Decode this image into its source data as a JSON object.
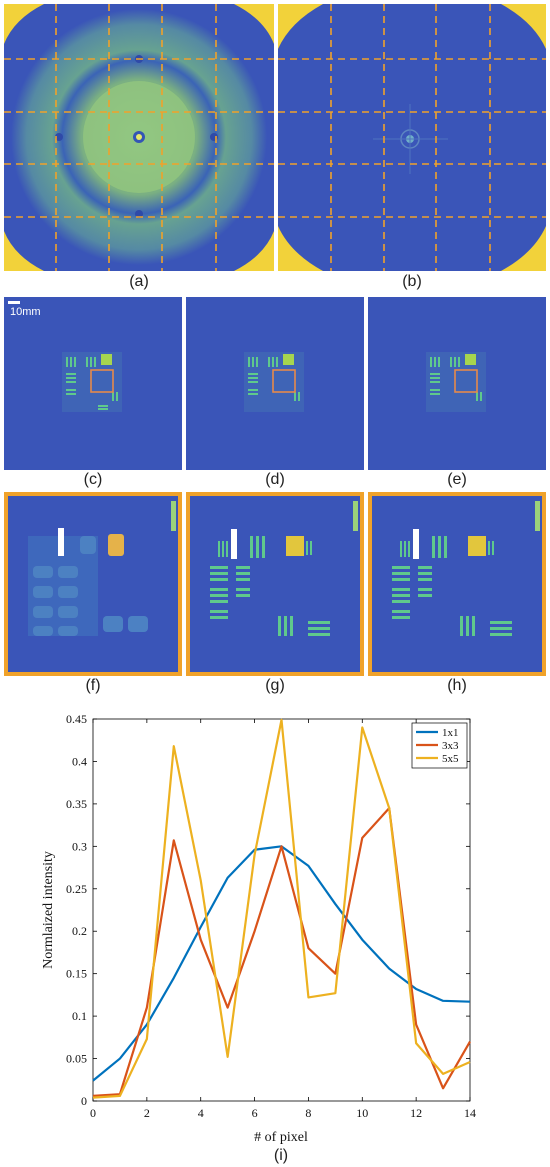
{
  "captions": {
    "a": "(a)",
    "b": "(b)",
    "c": "(c)",
    "d": "(d)",
    "e": "(e)",
    "f": "(f)",
    "g": "(g)",
    "h": "(h)",
    "i": "(i)"
  },
  "scale_bar_label": "10mm",
  "colors": {
    "background_blue": "#3a55b8",
    "grid_orange": "#f0a22a",
    "frame_orange": "#f0a22a",
    "ring_green": "#88c37a",
    "bright_yellow": "#f4d63c"
  },
  "chart_data": {
    "type": "line",
    "title": "",
    "xlabel": "# of pixel",
    "ylabel": "Normlaized intensity",
    "xlim": [
      0,
      14
    ],
    "ylim": [
      0,
      0.45
    ],
    "xticks": [
      0,
      2,
      4,
      6,
      8,
      10,
      12,
      14
    ],
    "yticks": [
      0,
      0.05,
      0.1,
      0.15,
      0.2,
      0.25,
      0.3,
      0.35,
      0.4,
      0.45
    ],
    "ytick_labels": [
      "0",
      "0.05",
      "0.1",
      "0.15",
      "0.2",
      "0.25",
      "0.3",
      "0.35",
      "0.4",
      "0.45"
    ],
    "legend_position": "top-right",
    "x": [
      0,
      1,
      2,
      3,
      4,
      5,
      6,
      7,
      8,
      9,
      10,
      11,
      12,
      13,
      14
    ],
    "series": [
      {
        "name": "1x1",
        "color": "#0072bd",
        "values": [
          0.024,
          0.05,
          0.09,
          0.145,
          0.205,
          0.263,
          0.296,
          0.3,
          0.277,
          0.232,
          0.19,
          0.156,
          0.132,
          0.118,
          0.117
        ]
      },
      {
        "name": "3x3",
        "color": "#d95319",
        "values": [
          0.006,
          0.008,
          0.11,
          0.307,
          0.19,
          0.11,
          0.2,
          0.3,
          0.18,
          0.15,
          0.31,
          0.345,
          0.09,
          0.015,
          0.07
        ]
      },
      {
        "name": "5x5",
        "color": "#edb120",
        "values": [
          0.004,
          0.006,
          0.073,
          0.418,
          0.26,
          0.052,
          0.29,
          0.449,
          0.122,
          0.127,
          0.44,
          0.345,
          0.068,
          0.032,
          0.046
        ]
      }
    ]
  }
}
